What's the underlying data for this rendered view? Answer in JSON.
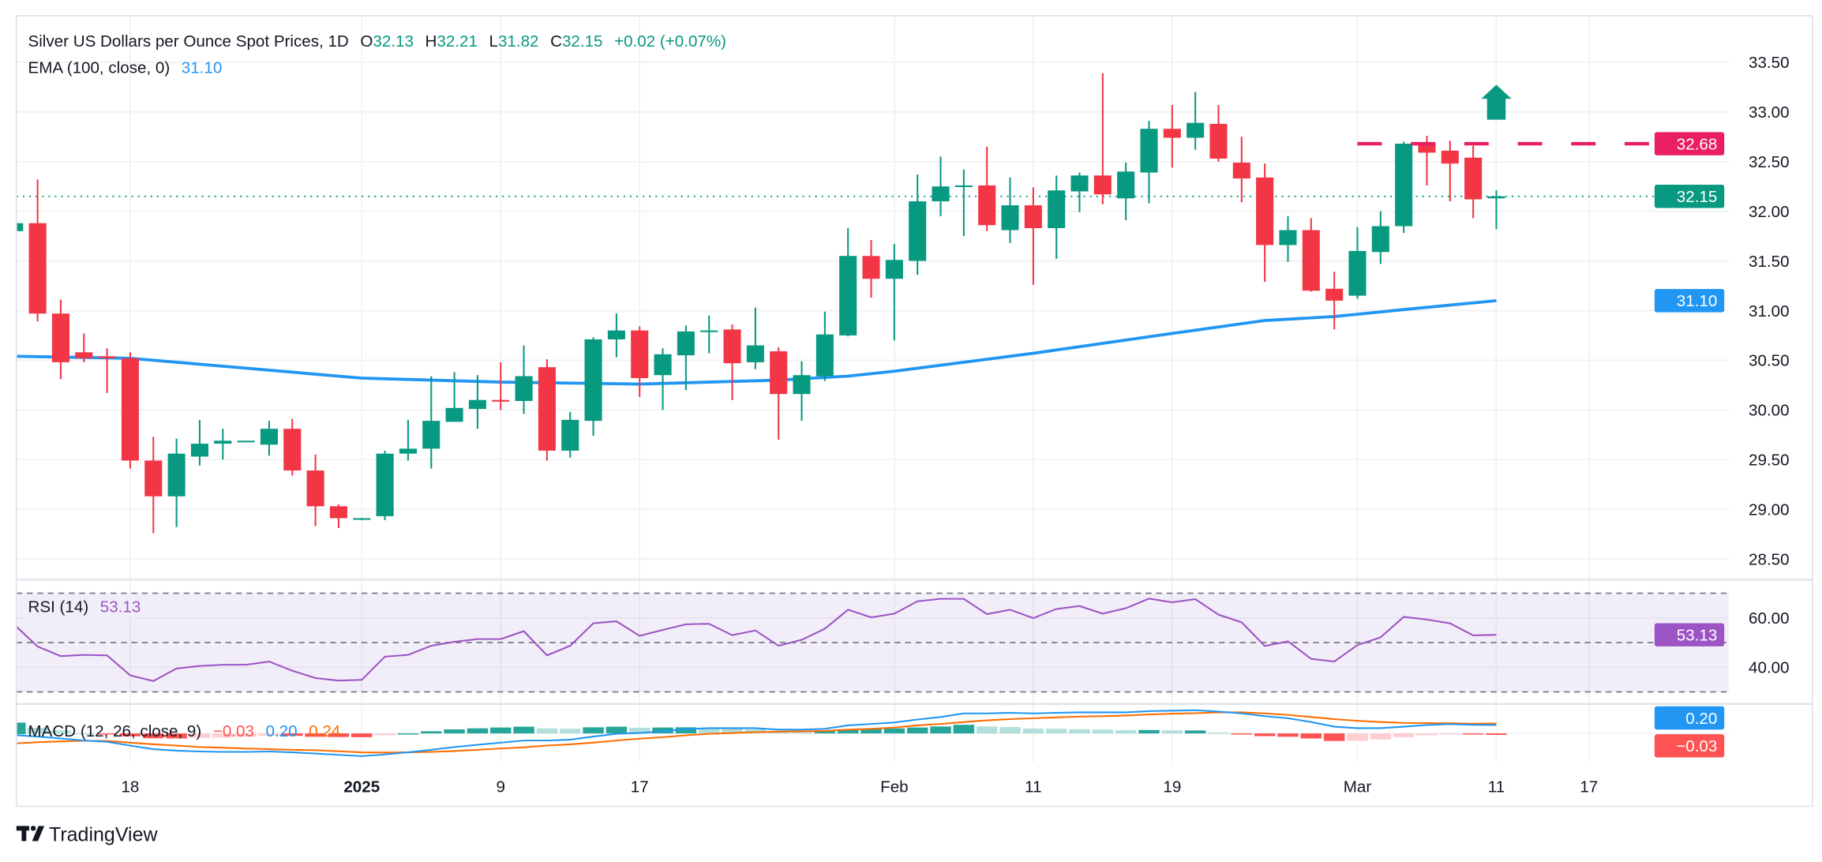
{
  "legend": {
    "title": "Silver US Dollars per Ounce Spot Prices, 1D",
    "o_label": "O",
    "o_value": "32.13",
    "h_label": "H",
    "h_value": "32.21",
    "l_label": "L",
    "l_value": "31.82",
    "c_label": "C",
    "c_value": "32.15",
    "change": "+0.02 (+0.07%)",
    "ema_label": "EMA (100, close, 0)",
    "ema_value": "31.10",
    "rsi_label": "RSI (14)",
    "rsi_value": "53.13",
    "macd_label": "MACD (12, 26, close, 9)",
    "macd_hist_value": "−0.03",
    "macd_value": "0.20",
    "macd_signal_value": "0.24"
  },
  "badges": {
    "resistance": "32.68",
    "last_price": "32.15",
    "ema": "31.10",
    "rsi": "53.13",
    "macd": "0.20",
    "macd_hist": "−0.03"
  },
  "brand": "TradingView",
  "colors": {
    "up": "#089981",
    "down": "#f23645",
    "ema": "#2196f3",
    "resistance": "#e91e63",
    "rsi": "#9c54c4",
    "macd": "#2196f3",
    "signal": "#ff6d00",
    "hist_up_strong": "#26a69a",
    "hist_up_weak": "#b2dfdb",
    "hist_down_strong": "#ff5252",
    "hist_down_weak": "#ffcdd2",
    "grid": "#f0f1f4",
    "text": "#131722"
  },
  "icons": {
    "target_arrow": "arrow-up-icon",
    "logo": "tradingview-logo-icon"
  },
  "chart_data": {
    "type": "candlestick",
    "title": "Silver US Dollars per Ounce Spot Prices, 1D",
    "interval": "1D",
    "price_axis": {
      "ticks": [
        "33.50",
        "33.00",
        "32.50",
        "32.00",
        "31.50",
        "31.00",
        "30.50",
        "30.00",
        "29.50",
        "29.00",
        "28.50"
      ],
      "range": [
        28.25,
        33.85
      ]
    },
    "time_axis": [
      {
        "label": "18",
        "date": "2024-12-18",
        "bold": false
      },
      {
        "label": "2025",
        "date": "2025-01-01",
        "bold": true
      },
      {
        "label": "9",
        "date": "2025-01-09",
        "bold": false
      },
      {
        "label": "17",
        "date": "2025-01-17",
        "bold": false
      },
      {
        "label": "Feb",
        "date": "2025-02-03",
        "bold": false
      },
      {
        "label": "11",
        "date": "2025-02-11",
        "bold": false
      },
      {
        "label": "19",
        "date": "2025-02-19",
        "bold": false
      },
      {
        "label": "Mar",
        "date": "2025-03-03",
        "bold": false
      },
      {
        "label": "11",
        "date": "2025-03-11",
        "bold": false
      },
      {
        "label": "17",
        "date": "2025-03-17",
        "bold": false
      }
    ],
    "candles_columns": [
      "date",
      "open",
      "high",
      "low",
      "close"
    ],
    "candles": [
      [
        "2024-12-11",
        31.8,
        31.92,
        31.78,
        31.88
      ],
      [
        "2024-12-12",
        31.88,
        32.32,
        30.89,
        30.97
      ],
      [
        "2024-12-13",
        30.97,
        31.11,
        30.31,
        30.48
      ],
      [
        "2024-12-16",
        30.58,
        30.77,
        30.48,
        30.52
      ],
      [
        "2024-12-17",
        30.54,
        30.62,
        30.17,
        30.52
      ],
      [
        "2024-12-18",
        30.52,
        30.58,
        29.41,
        29.49
      ],
      [
        "2024-12-19",
        29.49,
        29.73,
        28.76,
        29.13
      ],
      [
        "2024-12-20",
        29.13,
        29.71,
        28.82,
        29.56
      ],
      [
        "2024-12-23",
        29.53,
        29.9,
        29.44,
        29.66
      ],
      [
        "2024-12-24",
        29.66,
        29.81,
        29.5,
        29.69
      ],
      [
        "2024-12-25",
        29.69,
        29.69,
        29.69,
        29.69
      ],
      [
        "2024-12-26",
        29.65,
        29.89,
        29.54,
        29.81
      ],
      [
        "2024-12-27",
        29.81,
        29.91,
        29.34,
        29.39
      ],
      [
        "2024-12-30",
        29.39,
        29.55,
        28.83,
        29.03
      ],
      [
        "2024-12-31",
        29.03,
        29.05,
        28.81,
        28.91
      ],
      [
        "2025-01-01",
        28.9,
        28.91,
        28.89,
        28.91
      ],
      [
        "2025-01-02",
        28.93,
        29.59,
        28.89,
        29.56
      ],
      [
        "2025-01-03",
        29.56,
        29.9,
        29.49,
        29.61
      ],
      [
        "2025-01-06",
        29.61,
        30.34,
        29.41,
        29.89
      ],
      [
        "2025-01-07",
        29.88,
        30.38,
        29.88,
        30.02
      ],
      [
        "2025-01-08",
        30.01,
        30.35,
        29.81,
        30.1
      ],
      [
        "2025-01-09",
        30.1,
        30.48,
        30.0,
        30.09
      ],
      [
        "2025-01-10",
        30.09,
        30.65,
        29.96,
        30.34
      ],
      [
        "2025-01-13",
        30.43,
        30.51,
        29.49,
        29.59
      ],
      [
        "2025-01-14",
        29.59,
        29.98,
        29.52,
        29.9
      ],
      [
        "2025-01-15",
        29.89,
        30.73,
        29.74,
        30.71
      ],
      [
        "2025-01-16",
        30.71,
        30.97,
        30.53,
        30.8
      ],
      [
        "2025-01-17",
        30.8,
        30.84,
        30.13,
        30.32
      ],
      [
        "2025-01-20",
        30.35,
        30.62,
        30.0,
        30.56
      ],
      [
        "2025-01-21",
        30.55,
        30.85,
        30.2,
        30.79
      ],
      [
        "2025-01-22",
        30.79,
        30.95,
        30.57,
        30.8
      ],
      [
        "2025-01-23",
        30.81,
        30.86,
        30.1,
        30.47
      ],
      [
        "2025-01-24",
        30.48,
        31.03,
        30.41,
        30.65
      ],
      [
        "2025-01-27",
        30.59,
        30.63,
        29.7,
        30.16
      ],
      [
        "2025-01-28",
        30.16,
        30.49,
        29.89,
        30.35
      ],
      [
        "2025-01-29",
        30.34,
        30.99,
        30.29,
        30.76
      ],
      [
        "2025-01-30",
        30.75,
        31.83,
        30.74,
        31.55
      ],
      [
        "2025-01-31",
        31.55,
        31.71,
        31.13,
        31.32
      ],
      [
        "2025-02-03",
        31.32,
        31.67,
        30.7,
        31.51
      ],
      [
        "2025-02-04",
        31.5,
        32.37,
        31.36,
        32.1
      ],
      [
        "2025-02-05",
        32.1,
        32.55,
        31.95,
        32.25
      ],
      [
        "2025-02-06",
        32.25,
        32.42,
        31.75,
        32.26
      ],
      [
        "2025-02-07",
        32.26,
        32.65,
        31.8,
        31.86
      ],
      [
        "2025-02-10",
        31.81,
        32.34,
        31.68,
        32.06
      ],
      [
        "2025-02-11",
        32.06,
        32.24,
        31.26,
        31.83
      ],
      [
        "2025-02-12",
        31.83,
        32.36,
        31.52,
        32.21
      ],
      [
        "2025-02-13",
        32.2,
        32.39,
        31.99,
        32.36
      ],
      [
        "2025-02-14",
        32.36,
        33.39,
        32.07,
        32.17
      ],
      [
        "2025-02-17",
        32.13,
        32.49,
        31.91,
        32.4
      ],
      [
        "2025-02-18",
        32.39,
        32.91,
        32.08,
        32.83
      ],
      [
        "2025-02-19",
        32.83,
        33.07,
        32.44,
        32.74
      ],
      [
        "2025-02-20",
        32.74,
        33.2,
        32.62,
        32.89
      ],
      [
        "2025-02-21",
        32.88,
        33.07,
        32.5,
        32.53
      ],
      [
        "2025-02-24",
        32.49,
        32.75,
        32.09,
        32.33
      ],
      [
        "2025-02-25",
        32.34,
        32.48,
        31.29,
        31.66
      ],
      [
        "2025-02-26",
        31.66,
        31.95,
        31.49,
        31.81
      ],
      [
        "2025-02-27",
        31.81,
        31.93,
        31.19,
        31.2
      ],
      [
        "2025-02-28",
        31.22,
        31.39,
        30.81,
        31.1
      ],
      [
        "2025-03-03",
        31.15,
        31.84,
        31.12,
        31.6
      ],
      [
        "2025-03-04",
        31.59,
        32.0,
        31.47,
        31.85
      ],
      [
        "2025-03-05",
        31.85,
        32.7,
        31.78,
        32.68
      ],
      [
        "2025-03-06",
        32.69,
        32.76,
        32.26,
        32.59
      ],
      [
        "2025-03-07",
        32.61,
        32.71,
        32.1,
        32.48
      ],
      [
        "2025-03-10",
        32.54,
        32.66,
        31.93,
        32.12
      ],
      [
        "2025-03-11",
        32.13,
        32.21,
        31.82,
        32.15
      ]
    ],
    "ema_100": [
      [
        "2024-12-11",
        30.54
      ],
      [
        "2024-12-18",
        30.52
      ],
      [
        "2025-01-01",
        30.32
      ],
      [
        "2025-01-09",
        30.28
      ],
      [
        "2025-01-17",
        30.26
      ],
      [
        "2025-01-27",
        30.3
      ],
      [
        "2025-01-30",
        30.34
      ],
      [
        "2025-02-03",
        30.39
      ],
      [
        "2025-02-11",
        30.57
      ],
      [
        "2025-02-19",
        30.77
      ],
      [
        "2025-02-25",
        30.9
      ],
      [
        "2025-02-28",
        30.94
      ],
      [
        "2025-03-05",
        31.01
      ],
      [
        "2025-03-11",
        31.1
      ]
    ],
    "resistance_level": 32.68,
    "last_price": 32.15,
    "rsi": {
      "period": 14,
      "upper": 70,
      "middle": 50,
      "lower": 30,
      "ticks": [
        "60.00",
        "40.00"
      ],
      "values": [
        57.2,
        48.4,
        44.5,
        45.0,
        44.8,
        36.7,
        34.4,
        39.5,
        40.5,
        41.0,
        41.0,
        42.3,
        38.6,
        35.6,
        34.6,
        34.9,
        44.3,
        45.0,
        48.7,
        50.3,
        51.4,
        51.4,
        54.6,
        44.8,
        48.7,
        57.8,
        58.6,
        52.7,
        55.1,
        57.4,
        57.6,
        53.0,
        54.9,
        48.7,
        51.1,
        55.6,
        63.3,
        60.2,
        61.7,
        66.7,
        67.7,
        67.7,
        61.5,
        63.3,
        59.9,
        63.6,
        64.8,
        61.7,
        63.9,
        67.8,
        66.3,
        67.6,
        61.3,
        58.2,
        48.6,
        50.5,
        43.4,
        42.3,
        49.0,
        52.1,
        60.4,
        59.3,
        57.8,
        52.9,
        53.13
      ]
    },
    "macd": {
      "params": [
        12,
        26,
        9
      ],
      "macd": [
        -0.04,
        -0.075,
        -0.12,
        -0.17,
        -0.2,
        -0.29,
        -0.375,
        -0.41,
        -0.43,
        -0.44,
        -0.44,
        -0.43,
        -0.45,
        -0.48,
        -0.51,
        -0.54,
        -0.5,
        -0.45,
        -0.39,
        -0.325,
        -0.27,
        -0.22,
        -0.17,
        -0.17,
        -0.15,
        -0.075,
        -0.01,
        0.01,
        0.05,
        0.1,
        0.125,
        0.125,
        0.125,
        0.09,
        0.09,
        0.11,
        0.19,
        0.225,
        0.26,
        0.33,
        0.39,
        0.475,
        0.475,
        0.49,
        0.475,
        0.49,
        0.5,
        0.5,
        0.5,
        0.53,
        0.54,
        0.55,
        0.52,
        0.475,
        0.41,
        0.36,
        0.27,
        0.16,
        0.125,
        0.125,
        0.16,
        0.2,
        0.22,
        0.205,
        0.2
      ],
      "signal": [
        -0.24,
        -0.21,
        -0.19,
        -0.175,
        -0.18,
        -0.22,
        -0.26,
        -0.29,
        -0.325,
        -0.34,
        -0.36,
        -0.375,
        -0.39,
        -0.4,
        -0.425,
        -0.45,
        -0.455,
        -0.45,
        -0.44,
        -0.42,
        -0.39,
        -0.36,
        -0.33,
        -0.29,
        -0.26,
        -0.22,
        -0.17,
        -0.125,
        -0.09,
        -0.045,
        -0.01,
        0.01,
        0.03,
        0.04,
        0.05,
        0.06,
        0.09,
        0.11,
        0.14,
        0.19,
        0.225,
        0.27,
        0.31,
        0.34,
        0.36,
        0.38,
        0.4,
        0.41,
        0.425,
        0.45,
        0.47,
        0.48,
        0.5,
        0.5,
        0.475,
        0.44,
        0.39,
        0.34,
        0.3,
        0.27,
        0.25,
        0.245,
        0.24,
        0.23,
        0.235
      ]
    }
  }
}
